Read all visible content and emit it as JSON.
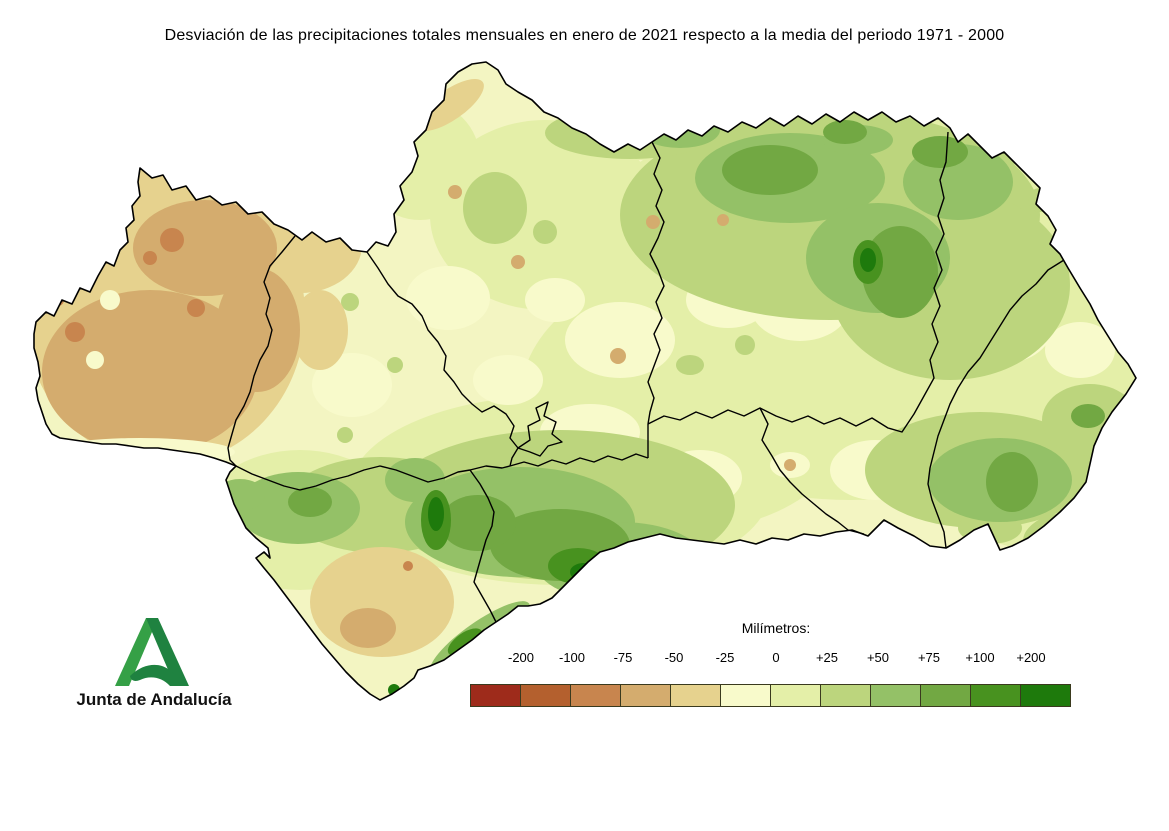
{
  "title": "Desviación de las precipitaciones totales mensuales en enero de 2021 respecto a la media del periodo 1971 - 2000",
  "legend": {
    "title": "Milímetros:",
    "tick_labels": [
      "-200",
      "-100",
      "-75",
      "-50",
      "-25",
      "0",
      "+25",
      "+50",
      "+75",
      "+100",
      "+200"
    ],
    "swatch_colors": [
      "#9E2B1B",
      "#B4602E",
      "#C8854E",
      "#D4AC6E",
      "#E6D28E",
      "#F8FACB",
      "#E4EFA8",
      "#BCD57D",
      "#94C167",
      "#72A843",
      "#48921F",
      "#1E7A0C"
    ]
  },
  "logo": {
    "text": "Junta de Andalucía",
    "green_light": "#35A046",
    "green_dark": "#1F8240"
  },
  "map": {
    "base_fill": "#F3F5C2",
    "boundary_color": "#000000",
    "sea_color": "#FFFFFF"
  }
}
